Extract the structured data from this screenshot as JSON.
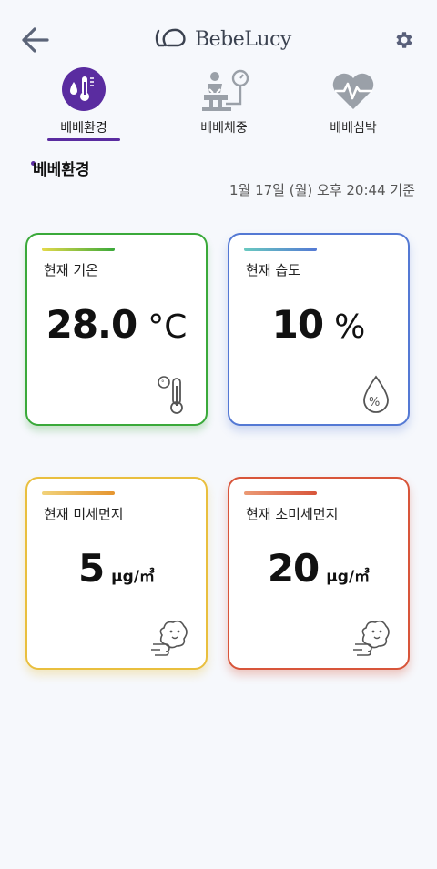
{
  "header": {
    "logo_text": "BebeLucy",
    "back_icon": "arrow-left-icon",
    "settings_icon": "gear-icon"
  },
  "tabs": [
    {
      "label": "베베환경",
      "icon": "thermometer-drop-icon",
      "active": true
    },
    {
      "label": "베베체중",
      "icon": "baby-scale-icon",
      "active": false
    },
    {
      "label": "베베심박",
      "icon": "heartbeat-icon",
      "active": false
    }
  ],
  "section": {
    "title": "베베환경",
    "timestamp": "1월 17일 (월) 오후 20:44 기준"
  },
  "cards": {
    "temperature": {
      "label": "현재 기온",
      "value": "28.0",
      "unit": "°C",
      "icon": "thermometer-icon"
    },
    "humidity": {
      "label": "현재 습도",
      "value": "10",
      "unit": "%",
      "icon": "humidity-drop-icon"
    },
    "dust": {
      "label": "현재 미세먼지",
      "value": "5",
      "unit": "μg/㎥",
      "icon": "dust-cloud-icon"
    },
    "ultrafine": {
      "label": "현재 초미세먼지",
      "value": "20",
      "unit": "μg/㎥",
      "icon": "dust-cloud-icon"
    }
  },
  "colors": {
    "accent": "#5a2ca0",
    "temperature": "#3aa93a",
    "humidity": "#5479d4",
    "dust": "#e9bf3e",
    "ultrafine": "#d8553a"
  }
}
